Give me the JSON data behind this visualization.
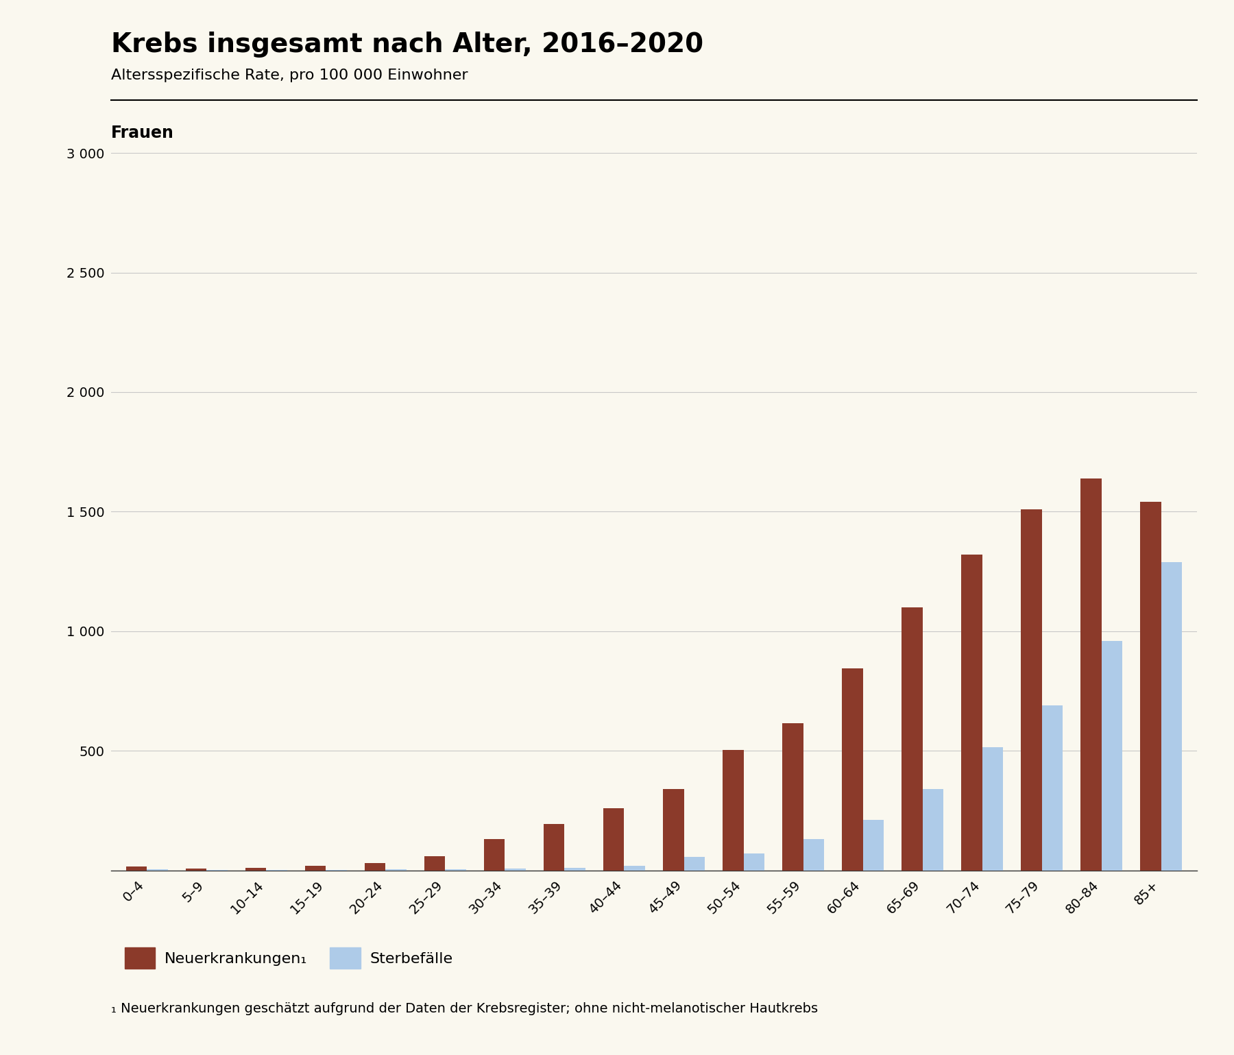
{
  "title": "Krebs insgesamt nach Alter, 2016–2020",
  "subtitle": "Altersspezifische Rate, pro 100 000 Einwohner",
  "section_label": "Frauen",
  "categories": [
    "0–4",
    "5–9",
    "10–14",
    "15–19",
    "20–24",
    "25–29",
    "30–34",
    "35–39",
    "40–44",
    "45–49",
    "50–54",
    "55–59",
    "60–64",
    "65–69",
    "70–74",
    "75–79",
    "80–84",
    "85+"
  ],
  "neuerkrankungen": [
    15,
    8,
    10,
    18,
    30,
    60,
    130,
    195,
    260,
    340,
    505,
    615,
    845,
    1100,
    1320,
    1510,
    1640,
    1540
  ],
  "sterbefaelle": [
    5,
    3,
    3,
    3,
    4,
    5,
    8,
    10,
    20,
    55,
    70,
    130,
    210,
    340,
    515,
    690,
    960,
    1290
  ],
  "neuerkrankungen_color": "#8B3A2A",
  "sterbefaelle_color": "#AECBE8",
  "background_color": "#FAF8EF",
  "ylim": [
    0,
    3000
  ],
  "yticks": [
    0,
    500,
    1000,
    1500,
    2000,
    2500,
    3000
  ],
  "ytick_labels": [
    "",
    "500",
    "1 000",
    "1 500",
    "2 000",
    "2 500",
    "3 000"
  ],
  "legend_neu_label": "Neuerkrankungen₁",
  "legend_sterb_label": "Sterbefälle",
  "footnote_sub": "₁",
  "footnote_text": " Neuerkrankungen geschätzt aufgrund der Daten der Krebsregister; ohne nicht-melanotischer Hautkrebs",
  "title_fontsize": 28,
  "subtitle_fontsize": 16,
  "section_fontsize": 17,
  "axis_fontsize": 14,
  "legend_fontsize": 16,
  "footnote_fontsize": 14
}
